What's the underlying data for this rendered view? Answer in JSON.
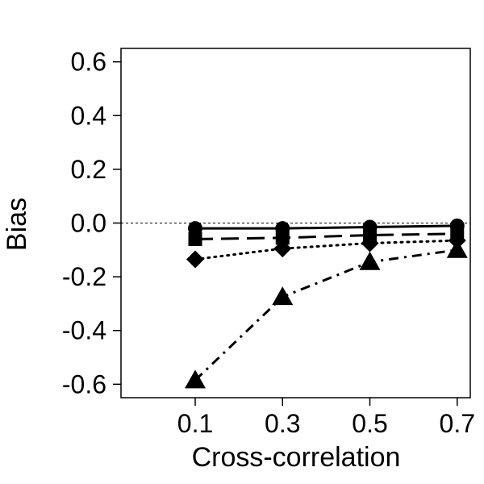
{
  "chart_data": {
    "type": "line",
    "title": "",
    "xlabel": "Cross-correlation",
    "ylabel": "Bias",
    "x": [
      0.1,
      0.3,
      0.5,
      0.7
    ],
    "x_tick_labels": [
      "0.1",
      "0.3",
      "0.5",
      "0.7"
    ],
    "y_ticks": [
      -0.6,
      -0.4,
      -0.2,
      0.0,
      0.2,
      0.4,
      0.6
    ],
    "y_tick_labels": [
      "-0.6",
      "-0.4",
      "-0.2",
      "0.0",
      "0.2",
      "0.4",
      "0.6"
    ],
    "xlim": [
      -0.07,
      0.73
    ],
    "ylim": [
      -0.65,
      0.65
    ],
    "reference_line": {
      "y": 0.0,
      "style": "dashed"
    },
    "grid": false,
    "legend": "none",
    "series": [
      {
        "marker": "circle",
        "line_style": "solid",
        "color": "#000000",
        "values": [
          -0.02,
          -0.02,
          -0.015,
          -0.01
        ]
      },
      {
        "marker": "square",
        "line_style": "long-dash",
        "color": "#000000",
        "values": [
          -0.06,
          -0.055,
          -0.045,
          -0.04
        ]
      },
      {
        "marker": "diamond",
        "line_style": "dotted",
        "color": "#000000",
        "values": [
          -0.135,
          -0.095,
          -0.075,
          -0.065
        ]
      },
      {
        "marker": "triangle",
        "line_style": "dash-dot",
        "color": "#000000",
        "values": [
          -0.585,
          -0.275,
          -0.145,
          -0.1
        ]
      }
    ]
  }
}
